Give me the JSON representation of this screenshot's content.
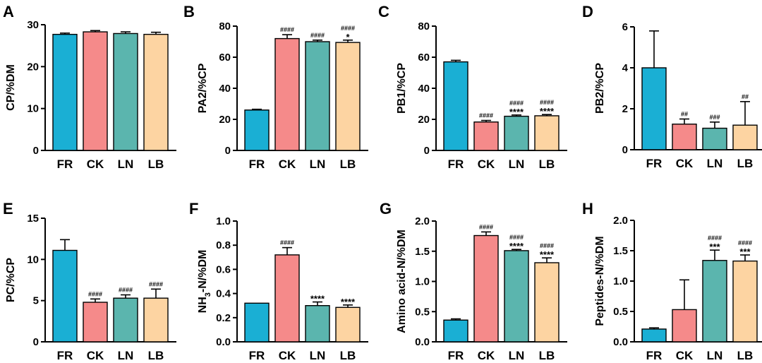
{
  "colors": {
    "FR": "#1aafd4",
    "CK": "#f58a8a",
    "LN": "#5bb5ae",
    "LB": "#fdd4a2",
    "axis": "#000000"
  },
  "chart_data": [
    {
      "type": "bar",
      "panel": "A",
      "ylabel": "CP/%DM",
      "ylabel_parts": [
        {
          "t": "CP/%DM",
          "sub": false
        }
      ],
      "categories": [
        "FR",
        "CK",
        "LN",
        "LB"
      ],
      "values": [
        27.7,
        28.3,
        27.9,
        27.7
      ],
      "errors": [
        0.3,
        0.3,
        0.4,
        0.5
      ],
      "ylim": [
        0,
        30
      ],
      "yticks": [
        0,
        10,
        20,
        30
      ],
      "ytick_labels": [
        "0",
        "10",
        "20",
        "30"
      ],
      "sig_hash": [
        "",
        "",
        "",
        ""
      ],
      "sig_star": [
        "",
        "",
        "",
        ""
      ]
    },
    {
      "type": "bar",
      "panel": "B",
      "ylabel": "PA2/%CP",
      "ylabel_parts": [
        {
          "t": "PA2/%CP",
          "sub": false
        }
      ],
      "categories": [
        "FR",
        "CK",
        "LN",
        "LB"
      ],
      "values": [
        26,
        72,
        70,
        69.5
      ],
      "errors": [
        0.5,
        2.5,
        1.0,
        1.5
      ],
      "ylim": [
        0,
        80
      ],
      "yticks": [
        0,
        20,
        40,
        60,
        80
      ],
      "ytick_labels": [
        "0",
        "20",
        "40",
        "60",
        "80"
      ],
      "sig_hash": [
        "",
        "####",
        "####",
        "####"
      ],
      "sig_star": [
        "",
        "",
        "",
        "*"
      ]
    },
    {
      "type": "bar",
      "panel": "C",
      "ylabel": "PB1/%CP",
      "ylabel_parts": [
        {
          "t": "PB1/%CP",
          "sub": false
        }
      ],
      "categories": [
        "FR",
        "CK",
        "LN",
        "LB"
      ],
      "values": [
        57,
        18.3,
        22,
        22.3
      ],
      "errors": [
        1.0,
        1.0,
        0.8,
        0.8
      ],
      "ylim": [
        0,
        80
      ],
      "yticks": [
        0,
        20,
        40,
        60,
        80
      ],
      "ytick_labels": [
        "0",
        "20",
        "40",
        "60",
        "80"
      ],
      "sig_hash": [
        "",
        "####",
        "####",
        "####"
      ],
      "sig_star": [
        "",
        "",
        "****",
        "****"
      ]
    },
    {
      "type": "bar",
      "panel": "D",
      "ylabel": "PB2/%CP",
      "ylabel_parts": [
        {
          "t": "PB2/%CP",
          "sub": false
        }
      ],
      "categories": [
        "FR",
        "CK",
        "LN",
        "LB"
      ],
      "values": [
        4.0,
        1.25,
        1.05,
        1.2
      ],
      "errors": [
        1.8,
        0.25,
        0.3,
        1.15
      ],
      "ylim": [
        0,
        6
      ],
      "yticks": [
        0,
        2,
        4,
        6
      ],
      "ytick_labels": [
        "0",
        "2",
        "4",
        "6"
      ],
      "sig_hash": [
        "",
        "##",
        "###",
        "##"
      ],
      "sig_star": [
        "",
        "",
        "",
        ""
      ]
    },
    {
      "type": "bar",
      "panel": "E",
      "ylabel": "PC/%CP",
      "ylabel_parts": [
        {
          "t": "PC/%CP",
          "sub": false
        }
      ],
      "categories": [
        "FR",
        "CK",
        "LN",
        "LB"
      ],
      "values": [
        11.1,
        4.8,
        5.3,
        5.3
      ],
      "errors": [
        1.3,
        0.4,
        0.4,
        1.1
      ],
      "ylim": [
        0,
        15
      ],
      "yticks": [
        0,
        5,
        10,
        15
      ],
      "ytick_labels": [
        "0",
        "5",
        "10",
        "15"
      ],
      "sig_hash": [
        "",
        "####",
        "####",
        "####"
      ],
      "sig_star": [
        "",
        "",
        "",
        ""
      ]
    },
    {
      "type": "bar",
      "panel": "F",
      "ylabel": "NH3-N/%DM",
      "ylabel_parts": [
        {
          "t": "NH",
          "sub": false
        },
        {
          "t": "3",
          "sub": true
        },
        {
          "t": "-N/%DM",
          "sub": false
        }
      ],
      "categories": [
        "FR",
        "CK",
        "LN",
        "LB"
      ],
      "values": [
        0.32,
        0.72,
        0.3,
        0.285
      ],
      "errors": [
        0.0,
        0.06,
        0.03,
        0.02
      ],
      "ylim": [
        0,
        1.0
      ],
      "yticks": [
        0,
        0.2,
        0.4,
        0.6,
        0.8,
        1.0
      ],
      "ytick_labels": [
        "0.0",
        "0.2",
        "0.4",
        "0.6",
        "0.8",
        "1.0"
      ],
      "sig_hash": [
        "",
        "####",
        "",
        ""
      ],
      "sig_star": [
        "",
        "",
        "****",
        "****"
      ]
    },
    {
      "type": "bar",
      "panel": "G",
      "ylabel": "Amino acid-N/%DM",
      "ylabel_parts": [
        {
          "t": "Amino acid-N/%DM",
          "sub": false
        }
      ],
      "categories": [
        "FR",
        "CK",
        "LN",
        "LB"
      ],
      "values": [
        0.36,
        1.76,
        1.51,
        1.31
      ],
      "errors": [
        0.02,
        0.06,
        0.02,
        0.08
      ],
      "ylim": [
        0,
        2.0
      ],
      "yticks": [
        0,
        0.5,
        1.0,
        1.5,
        2.0
      ],
      "ytick_labels": [
        "0.0",
        "0.5",
        "1.0",
        "1.5",
        "2.0"
      ],
      "sig_hash": [
        "",
        "####",
        "####",
        "####"
      ],
      "sig_star": [
        "",
        "",
        "****",
        "****"
      ]
    },
    {
      "type": "bar",
      "panel": "H",
      "ylabel": "Peptides-N/%DM",
      "ylabel_parts": [
        {
          "t": "Peptides-N/%DM",
          "sub": false
        }
      ],
      "categories": [
        "FR",
        "CK",
        "LN",
        "LB"
      ],
      "values": [
        0.21,
        0.53,
        1.34,
        1.33
      ],
      "errors": [
        0.02,
        0.49,
        0.17,
        0.1
      ],
      "ylim": [
        0,
        2.0
      ],
      "yticks": [
        0,
        0.5,
        1.0,
        1.5,
        2.0
      ],
      "ytick_labels": [
        "0.0",
        "0.5",
        "1.0",
        "1.5",
        "2.0"
      ],
      "sig_hash": [
        "",
        "",
        "####",
        "####"
      ],
      "sig_star": [
        "",
        "",
        "***",
        "***"
      ]
    }
  ]
}
